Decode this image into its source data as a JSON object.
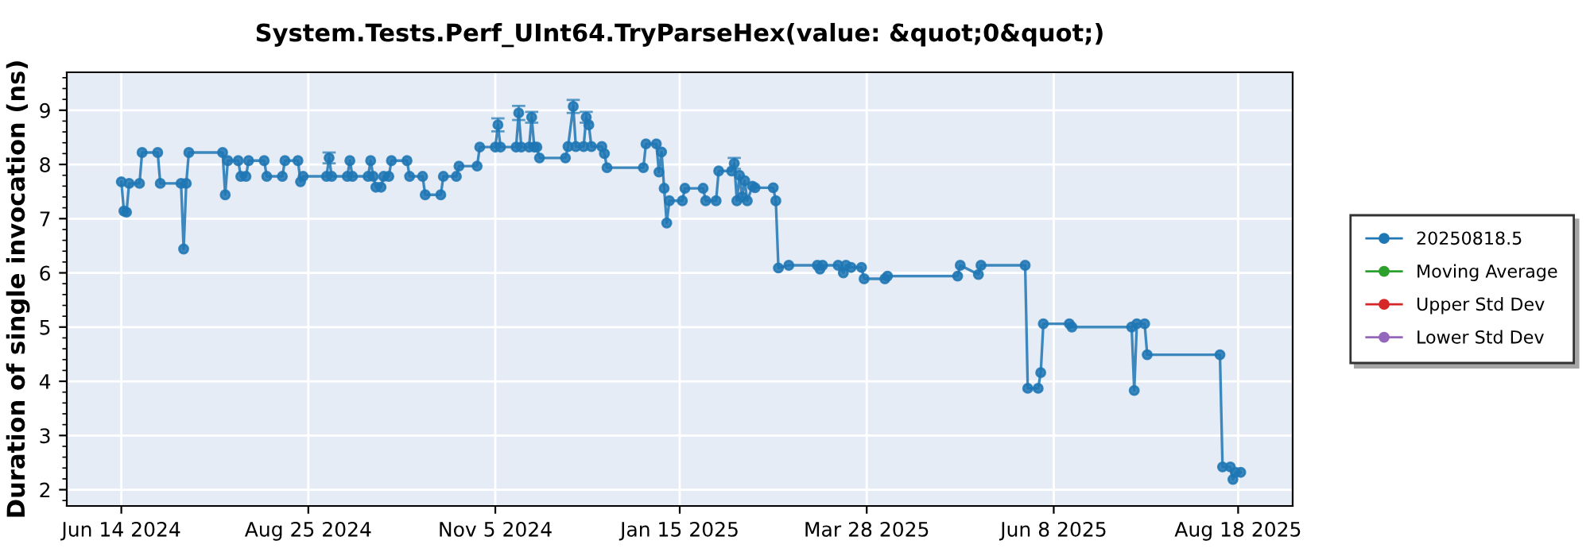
{
  "chart_data": {
    "type": "line",
    "title": "System.Tests.Perf_UInt64.TryParseHex(value: &quot;0&quot;)",
    "ylabel": "Duration of single invocation (ns)",
    "xlim": [
      "2024-05-24",
      "2025-09-08"
    ],
    "ylim": [
      1.7,
      9.7
    ],
    "yticks": [
      2,
      3,
      4,
      5,
      6,
      7,
      8,
      9
    ],
    "xticks": [
      {
        "value": "2024-06-14",
        "label": "Jun 14 2024"
      },
      {
        "value": "2024-08-25",
        "label": "Aug 25 2024"
      },
      {
        "value": "2024-11-05",
        "label": "Nov 5 2024"
      },
      {
        "value": "2025-01-15",
        "label": "Jan 15 2025"
      },
      {
        "value": "2025-03-28",
        "label": "Mar 28 2025"
      },
      {
        "value": "2025-06-08",
        "label": "Jun 8 2025"
      },
      {
        "value": "2025-08-18",
        "label": "Aug 18 2025"
      }
    ],
    "grid": true,
    "legend": "right",
    "marker": "circle",
    "line_style": "solid",
    "series": [
      {
        "name": "20250818.5",
        "color": "#1f77b4",
        "x": [
          "2024-06-14",
          "2024-06-15",
          "2024-06-16",
          "2024-06-17",
          "2024-06-21",
          "2024-06-22",
          "2024-06-28",
          "2024-06-29",
          "2024-07-07",
          "2024-07-08",
          "2024-07-09",
          "2024-07-10",
          "2024-07-23",
          "2024-07-24",
          "2024-07-25",
          "2024-07-29",
          "2024-07-30",
          "2024-08-01",
          "2024-08-02",
          "2024-08-08",
          "2024-08-09",
          "2024-08-15",
          "2024-08-16",
          "2024-08-21",
          "2024-08-22",
          "2024-08-23",
          "2024-09-01",
          "2024-09-02",
          "2024-09-03",
          "2024-09-09",
          "2024-09-10",
          "2024-09-11",
          "2024-09-17",
          "2024-09-18",
          "2024-09-19",
          "2024-09-20",
          "2024-09-22",
          "2024-09-23",
          "2024-09-25",
          "2024-09-26",
          "2024-10-02",
          "2024-10-03",
          "2024-10-08",
          "2024-10-09",
          "2024-10-15",
          "2024-10-16",
          "2024-10-21",
          "2024-10-22",
          "2024-10-29",
          "2024-10-30",
          "2024-11-05",
          "2024-11-06",
          "2024-11-07",
          "2024-11-13",
          "2024-11-14",
          "2024-11-15",
          "2024-11-18",
          "2024-11-19",
          "2024-11-20",
          "2024-11-21",
          "2024-11-22",
          "2024-12-02",
          "2024-12-03",
          "2024-12-05",
          "2024-12-06",
          "2024-12-09",
          "2024-12-10",
          "2024-12-11",
          "2024-12-12",
          "2024-12-16",
          "2024-12-17",
          "2024-12-18",
          "2025-01-01",
          "2025-01-02",
          "2025-01-06",
          "2025-01-07",
          "2025-01-08",
          "2025-01-09",
          "2025-01-10",
          "2025-01-11",
          "2025-01-16",
          "2025-01-17",
          "2025-01-24",
          "2025-01-25",
          "2025-01-29",
          "2025-01-30",
          "2025-02-04",
          "2025-02-05",
          "2025-02-06",
          "2025-02-07",
          "2025-02-08",
          "2025-02-09",
          "2025-02-10",
          "2025-02-12",
          "2025-02-13",
          "2025-02-20",
          "2025-02-21",
          "2025-02-22",
          "2025-02-26",
          "2025-03-09",
          "2025-03-10",
          "2025-03-11",
          "2025-03-17",
          "2025-03-19",
          "2025-03-20",
          "2025-03-22",
          "2025-03-26",
          "2025-03-27",
          "2025-04-04",
          "2025-04-05",
          "2025-05-02",
          "2025-05-03",
          "2025-05-10",
          "2025-05-11",
          "2025-05-28",
          "2025-05-29",
          "2025-06-02",
          "2025-06-03",
          "2025-06-04",
          "2025-06-14",
          "2025-06-15",
          "2025-07-08",
          "2025-07-09",
          "2025-07-10",
          "2025-07-13",
          "2025-07-14",
          "2025-08-11",
          "2025-08-12",
          "2025-08-15",
          "2025-08-16",
          "2025-08-17",
          "2025-08-19"
        ],
        "values": [
          7.68,
          7.14,
          7.12,
          7.65,
          7.65,
          8.22,
          8.22,
          7.65,
          7.65,
          6.44,
          7.65,
          8.22,
          8.22,
          7.44,
          8.07,
          8.07,
          7.78,
          7.78,
          8.07,
          8.07,
          7.78,
          7.78,
          8.07,
          8.07,
          7.68,
          7.78,
          7.78,
          8.12,
          7.78,
          7.78,
          8.07,
          7.78,
          7.78,
          8.07,
          7.78,
          7.58,
          7.58,
          7.78,
          7.78,
          8.07,
          8.07,
          7.78,
          7.78,
          7.44,
          7.44,
          7.78,
          7.78,
          7.97,
          7.97,
          8.32,
          8.32,
          8.73,
          8.32,
          8.32,
          8.95,
          8.32,
          8.32,
          8.87,
          8.32,
          8.32,
          8.12,
          8.12,
          8.33,
          9.07,
          8.33,
          8.33,
          8.87,
          8.73,
          8.33,
          8.33,
          8.2,
          7.94,
          7.94,
          8.38,
          8.38,
          7.86,
          8.23,
          7.56,
          6.92,
          7.33,
          7.33,
          7.56,
          7.56,
          7.33,
          7.33,
          7.88,
          7.88,
          8.02,
          7.33,
          7.8,
          7.4,
          7.7,
          7.33,
          7.6,
          7.57,
          7.57,
          7.33,
          6.09,
          6.14,
          6.14,
          6.07,
          6.14,
          6.14,
          6.0,
          6.14,
          6.1,
          6.1,
          5.89,
          5.89,
          5.94,
          5.94,
          6.14,
          5.97,
          6.14,
          6.14,
          3.87,
          3.87,
          4.16,
          5.06,
          5.06,
          5.0,
          5.0,
          3.83,
          5.06,
          5.06,
          4.49,
          4.49,
          2.42,
          2.42,
          2.19,
          2.32,
          2.32
        ],
        "errors": [
          null,
          null,
          null,
          null,
          null,
          null,
          null,
          null,
          null,
          null,
          null,
          null,
          null,
          null,
          null,
          null,
          null,
          null,
          null,
          null,
          null,
          null,
          null,
          null,
          null,
          null,
          null,
          0.1,
          null,
          null,
          null,
          null,
          null,
          null,
          null,
          null,
          null,
          null,
          null,
          null,
          null,
          null,
          null,
          null,
          null,
          null,
          null,
          null,
          null,
          null,
          null,
          0.12,
          null,
          null,
          0.13,
          null,
          null,
          0.1,
          null,
          null,
          null,
          null,
          null,
          0.12,
          null,
          null,
          0.1,
          null,
          null,
          null,
          null,
          null,
          null,
          null,
          null,
          null,
          null,
          null,
          null,
          null,
          null,
          null,
          null,
          null,
          null,
          null,
          null,
          0.1,
          null,
          null,
          null,
          null,
          null,
          null,
          null,
          null,
          null,
          null,
          null,
          null,
          null,
          null,
          null,
          null,
          null,
          null,
          null,
          null,
          null,
          null,
          null,
          null,
          null,
          null,
          null,
          null,
          null,
          null,
          null,
          null,
          null,
          null,
          null,
          null,
          null,
          null,
          null,
          null,
          null,
          null,
          null,
          null
        ]
      },
      {
        "name": "Moving Average",
        "color": "#2ca02c"
      },
      {
        "name": "Upper Std Dev",
        "color": "#d62728"
      },
      {
        "name": "Lower Std Dev",
        "color": "#9467bd"
      }
    ]
  }
}
